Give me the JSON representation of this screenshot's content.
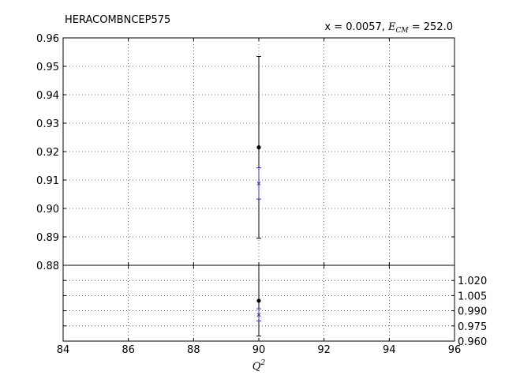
{
  "chart_data": {
    "type": "scatter",
    "title_left": "HERACOMBNCEP575",
    "title_right_prefix": "x = 0.0057, ",
    "title_right_var": "E",
    "title_right_sub": "CM",
    "title_right_suffix": " = 252.0",
    "xlabel_var": "Q",
    "xlabel_sup": "2",
    "xlim": [
      84,
      96
    ],
    "x_ticks": [
      "84",
      "86",
      "88",
      "90",
      "92",
      "94",
      "96"
    ],
    "grid": true,
    "top_panel": {
      "ylim": [
        0.88,
        0.96
      ],
      "y_ticks": [
        "0.88",
        "0.89",
        "0.90",
        "0.91",
        "0.92",
        "0.93",
        "0.94",
        "0.95",
        "0.96"
      ],
      "series": [
        {
          "x": 90,
          "y": 0.9215,
          "err_low": 0.8895,
          "err_high": 0.9535,
          "color": "#000000"
        },
        {
          "x": 90,
          "y": 0.9088,
          "err_low": 0.9033,
          "err_high": 0.9143,
          "color": "#3333aa"
        }
      ]
    },
    "bottom_panel": {
      "ylim": [
        0.96,
        1.035
      ],
      "y_ticks": [
        "0.960",
        "0.975",
        "0.990",
        "1.005",
        "1.020"
      ],
      "series": [
        {
          "x": 90,
          "y": 1.0,
          "err_low": 0.965,
          "err_high": 1.035,
          "color": "#000000"
        },
        {
          "x": 90,
          "y": 0.986,
          "err_low": 0.98,
          "err_high": 0.992,
          "color": "#3333aa"
        }
      ]
    }
  }
}
